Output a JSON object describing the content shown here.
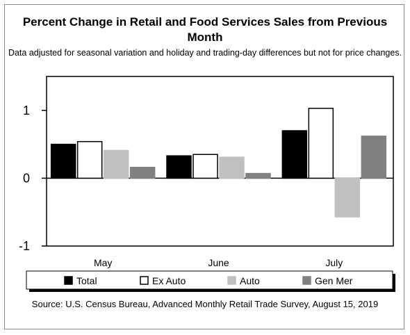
{
  "chart_data": {
    "type": "bar",
    "title": "Percent Change in Retail and Food Services Sales from Previous Month",
    "subtitle": "Data adjusted for seasonal variation and holiday and trading-day differences but not for price changes.",
    "categories": [
      "May",
      "June",
      "July"
    ],
    "series": [
      {
        "name": "Total",
        "values": [
          0.5,
          0.33,
          0.7
        ],
        "fill": "#000000",
        "stroke": "#000000"
      },
      {
        "name": "Ex Auto",
        "values": [
          0.54,
          0.35,
          1.03
        ],
        "fill": "#ffffff",
        "stroke": "#000000"
      },
      {
        "name": "Auto",
        "values": [
          0.41,
          0.31,
          -0.57
        ],
        "fill": "#c0c0c0",
        "stroke": "#c0c0c0"
      },
      {
        "name": "Gen Mer",
        "values": [
          0.16,
          0.07,
          0.62
        ],
        "fill": "#808080",
        "stroke": "#808080"
      }
    ],
    "ylim": [
      -1,
      1.5
    ],
    "yticks": [
      -1,
      0,
      1
    ],
    "ytick_labels": [
      "-1",
      "0",
      "1"
    ],
    "xlabel": "",
    "ylabel": "",
    "grid": false,
    "legend_position": "bottom",
    "source": "Source: U.S. Census Bureau, Advanced Monthly Retail Trade Survey, August 15, 2019"
  }
}
